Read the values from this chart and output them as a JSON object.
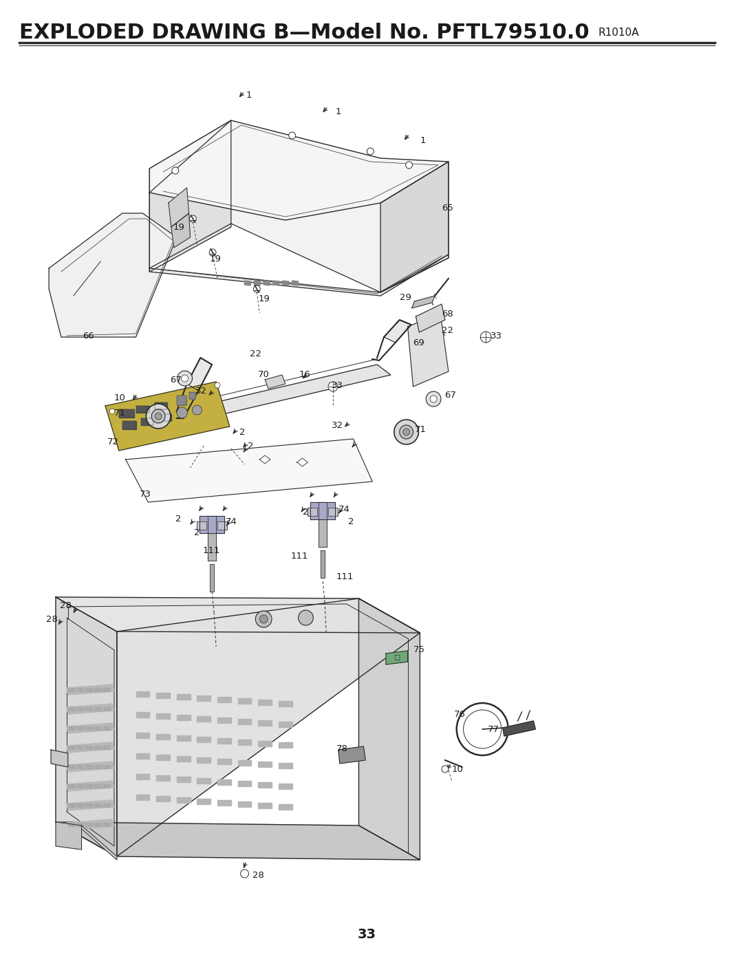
{
  "title": "EXPLODED DRAWING B—Model No. PFTL79510.0",
  "title_right": "R1010A",
  "page_number": "33",
  "bg": "#ffffff",
  "lc": "#2a2a2a",
  "tc": "#1a1a1a",
  "figsize": [
    10.8,
    13.97
  ],
  "dpi": 100
}
